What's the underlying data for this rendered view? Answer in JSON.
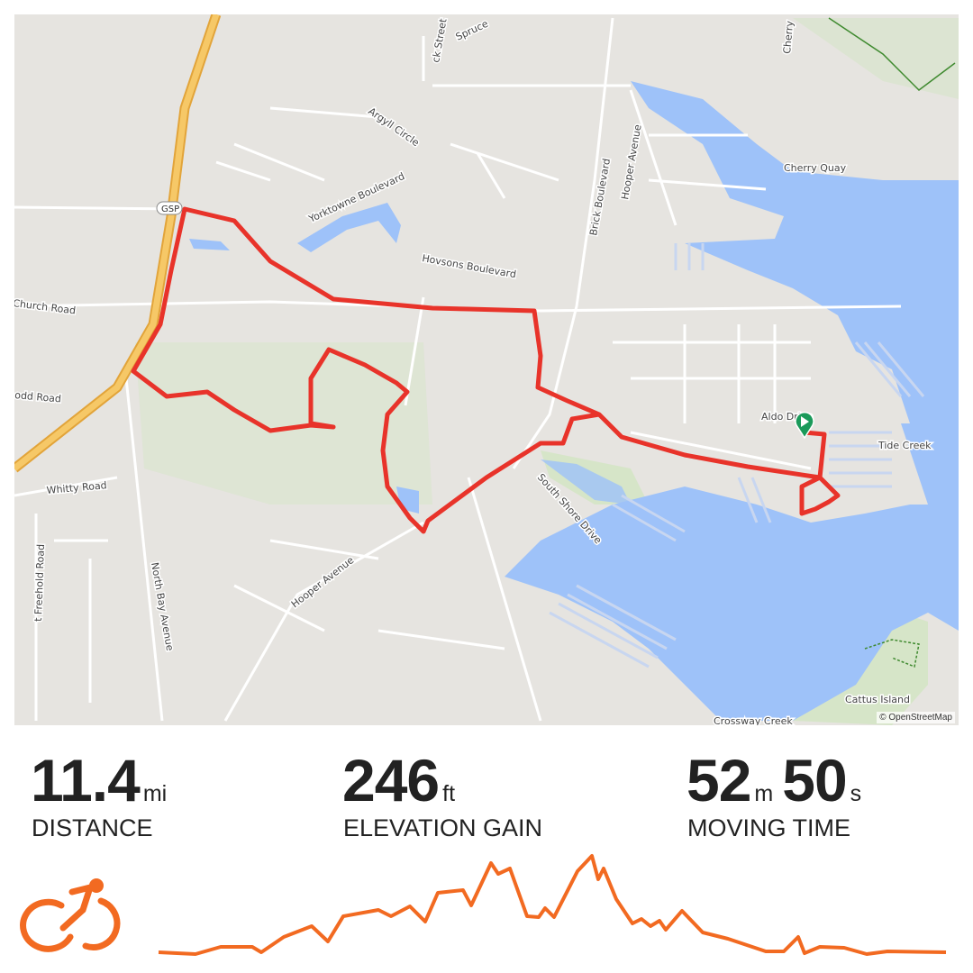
{
  "map": {
    "labels": {
      "spruce": "Spruce",
      "brick_street": "ck Street",
      "argyll": "Argyll Circle",
      "yorktowne": "Yorktowne Boulevard",
      "hovsons": "Hovsons Boulevard",
      "brick_blvd": "Brick Boulevard",
      "hooper_n": "Hooper Avenue",
      "cherry": "Cherry",
      "cherry_quay": "Cherry Quay",
      "church": "Church Road",
      "todd": "odd Road",
      "whitty": "Whitty Road",
      "freehold": "t Freehold Road",
      "north_bay": "North Bay Avenue",
      "hooper_s": "Hooper Avenue",
      "south_shore": "South Shore Drive",
      "aldo": "Aldo Drive",
      "tide_creek": "Tide Creek",
      "cattus": "Cattus Island",
      "crossway": "Crossway Creek",
      "gsp": "GSP"
    },
    "attribution": "© OpenStreetMap",
    "start_marker": "start-flag",
    "colors": {
      "route": "#e8332a",
      "water": "#9ec2f9",
      "land": "#e6e4e0",
      "park": "#cfe3c2",
      "highway": "#f3c45c",
      "marker": "#1a9a5a"
    }
  },
  "stats": [
    {
      "value": "11.4",
      "unit": "mi",
      "label": "DISTANCE"
    },
    {
      "value": "246",
      "unit": "ft",
      "label": "ELEVATION GAIN"
    },
    {
      "value": "52",
      "unit": "m",
      "value2": "50",
      "unit2": "s",
      "label": "MOVING TIME"
    }
  ],
  "activity": {
    "type": "ride",
    "icon": "cyclist-icon",
    "color": "#f26a21"
  }
}
